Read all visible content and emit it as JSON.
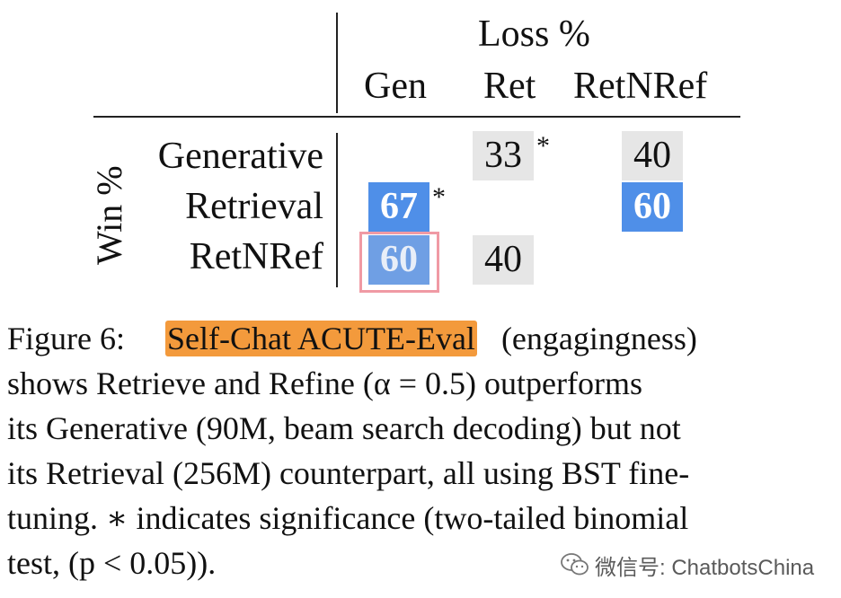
{
  "table": {
    "loss_header": "Loss %",
    "win_header": "Win %",
    "columns": [
      "Gen",
      "Ret",
      "RetNRef"
    ],
    "rows": [
      "Generative",
      "Retrieval",
      "RetNRef"
    ],
    "cells": {
      "generative_ret": "33",
      "generative_retnref": "40",
      "retrieval_gen": "67",
      "retrieval_retnref": "60",
      "retnref_gen": "60",
      "retnref_ret": "40"
    },
    "significance_marker": "*",
    "colors": {
      "highlight_blue": "#4f8fe8",
      "neutral_gray": "#e6e6e6",
      "selection_box": "#f09aa4"
    }
  },
  "caption": {
    "line1_prefix": "Figure 6:",
    "line1_highlight": "Self-Chat ACUTE-Eval",
    "line1_suffix": "(engagingness)",
    "line2": "shows Retrieve and Refine (α = 0.5) outperforms",
    "line3": "its Generative (90M, beam search decoding) but not",
    "line4": "its Retrieval (256M) counterpart, all using BST fine-",
    "line5": "tuning. ∗ indicates significance (two-tailed binomial",
    "line6": "test, (p < 0.05)).",
    "highlight_color": "#f39a3c"
  },
  "watermark": {
    "text": "微信号: ChatbotsChina",
    "icon": "wechat-icon"
  }
}
